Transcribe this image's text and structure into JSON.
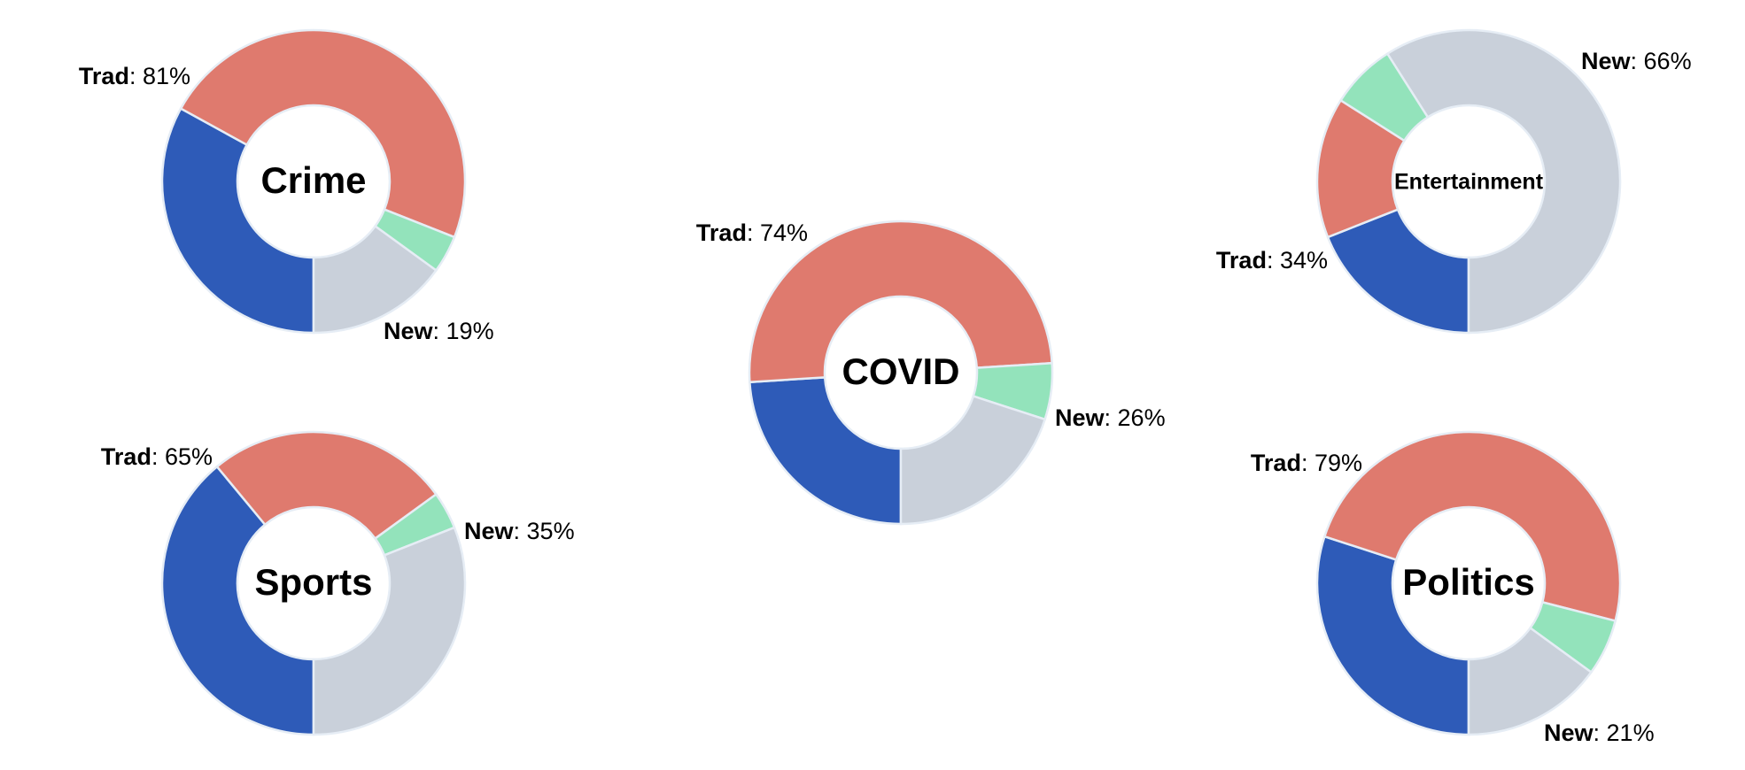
{
  "chart_data": [
    {
      "type": "donut",
      "title": "Crime",
      "values": [
        33,
        48,
        4,
        15
      ],
      "colors": [
        "#2e5bb8",
        "#df7a6e",
        "#93e3bb",
        "#c9d0da"
      ],
      "groups": [
        {
          "name": "Trad",
          "value": 81,
          "label": ": 81%"
        },
        {
          "name": "New",
          "value": 19,
          "label": ": 19%"
        }
      ]
    },
    {
      "type": "donut",
      "title": "Sports",
      "values": [
        39,
        26,
        4,
        31
      ],
      "colors": [
        "#2e5bb8",
        "#df7a6e",
        "#93e3bb",
        "#c9d0da"
      ],
      "groups": [
        {
          "name": "Trad",
          "value": 65,
          "label": ": 65%"
        },
        {
          "name": "New",
          "value": 35,
          "label": ": 35%"
        }
      ]
    },
    {
      "type": "donut",
      "title": "COVID",
      "values": [
        24,
        50,
        6,
        20
      ],
      "colors": [
        "#2e5bb8",
        "#df7a6e",
        "#93e3bb",
        "#c9d0da"
      ],
      "groups": [
        {
          "name": "Trad",
          "value": 74,
          "label": ": 74%"
        },
        {
          "name": "New",
          "value": 26,
          "label": ": 26%"
        }
      ]
    },
    {
      "type": "donut",
      "title": "Entertainment",
      "values": [
        19,
        15,
        7,
        59
      ],
      "colors": [
        "#2e5bb8",
        "#df7a6e",
        "#93e3bb",
        "#c9d0da"
      ],
      "groups": [
        {
          "name": "Trad",
          "value": 34,
          "label": ": 34%"
        },
        {
          "name": "New",
          "value": 66,
          "label": ": 66%"
        }
      ]
    },
    {
      "type": "donut",
      "title": "Politics",
      "values": [
        30,
        49,
        6,
        15
      ],
      "colors": [
        "#2e5bb8",
        "#df7a6e",
        "#93e3bb",
        "#c9d0da"
      ],
      "groups": [
        {
          "name": "Trad",
          "value": 79,
          "label": ": 79%"
        },
        {
          "name": "New",
          "value": 21,
          "label": ": 21%"
        }
      ]
    }
  ]
}
